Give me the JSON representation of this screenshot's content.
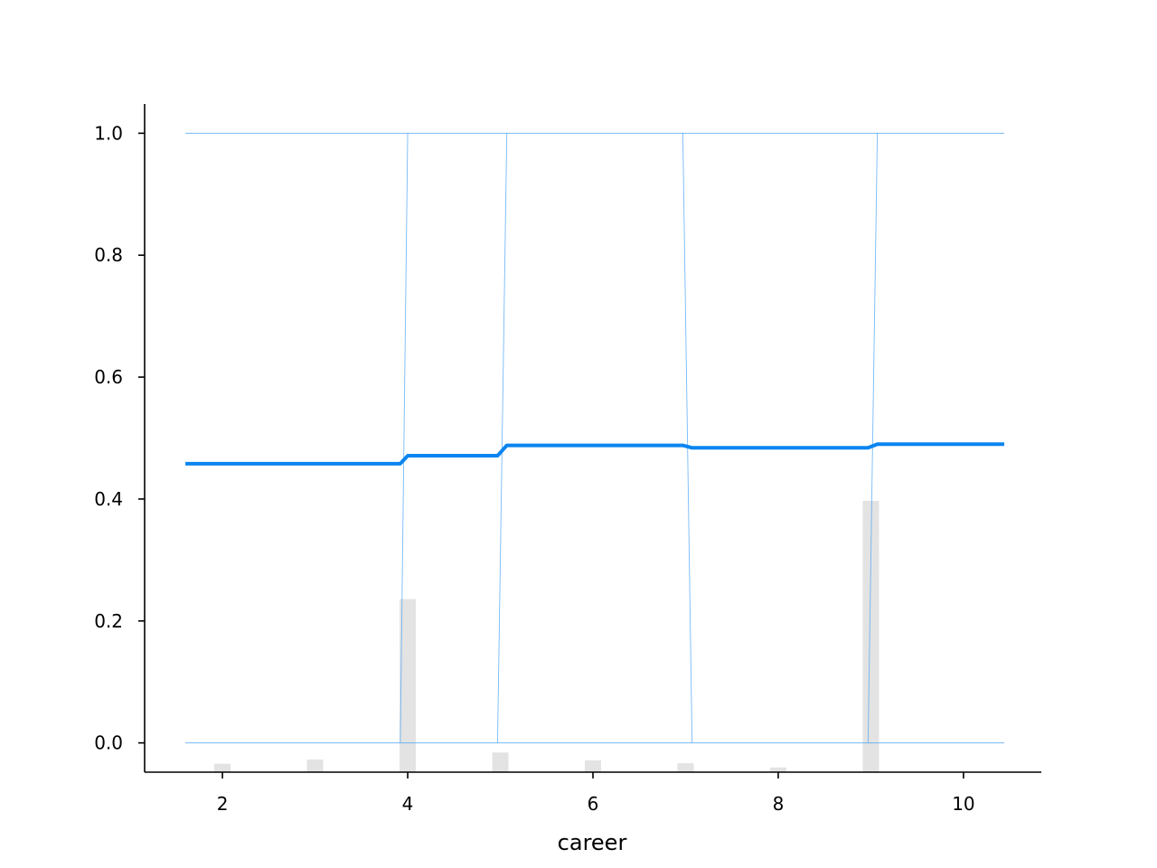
{
  "chart_data": {
    "type": "line",
    "title": "",
    "xlabel": "career",
    "ylabel": "",
    "xlim": [
      1.16,
      10.84
    ],
    "ylim": [
      -0.048,
      1.048
    ],
    "x_ticks": [
      2,
      4,
      6,
      8,
      10
    ],
    "x_tick_labels": [
      "2",
      "4",
      "6",
      "8",
      "10"
    ],
    "y_ticks": [
      0.0,
      0.2,
      0.4,
      0.6,
      0.8,
      1.0
    ],
    "y_tick_labels": [
      "0.0",
      "0.2",
      "0.4",
      "0.6",
      "0.8",
      "1.0"
    ],
    "grid": false,
    "colors": {
      "average_line": "#0a85f0",
      "individual_lines": "#4aa3f5",
      "histogram": "#e3e3e3",
      "axis": "#000000"
    },
    "average_line": {
      "x": [
        1.6,
        3.92,
        4.0,
        4.97,
        5.07,
        6.97,
        7.07,
        8.97,
        9.07,
        10.44
      ],
      "y": [
        0.458,
        0.458,
        0.471,
        0.471,
        0.488,
        0.488,
        0.484,
        0.484,
        0.49,
        0.49
      ]
    },
    "individual_lines": [
      {
        "x": [
          1.6,
          10.44
        ],
        "y": [
          1.0,
          1.0
        ]
      },
      {
        "x": [
          1.6,
          10.44
        ],
        "y": [
          0.0,
          0.0
        ]
      },
      {
        "x": [
          3.92,
          4.0
        ],
        "y": [
          0.0,
          1.0
        ]
      },
      {
        "x": [
          4.97,
          5.07
        ],
        "y": [
          0.0,
          1.0
        ]
      },
      {
        "x": [
          6.97,
          7.07
        ],
        "y": [
          1.0,
          0.0
        ]
      },
      {
        "x": [
          8.97,
          9.07
        ],
        "y": [
          0.0,
          1.0
        ]
      }
    ],
    "histogram": {
      "x": [
        2,
        3,
        4,
        5,
        6,
        7,
        8,
        9
      ],
      "density": [
        0.018,
        0.027,
        0.37,
        0.042,
        0.025,
        0.019,
        0.01,
        0.58
      ]
    }
  }
}
